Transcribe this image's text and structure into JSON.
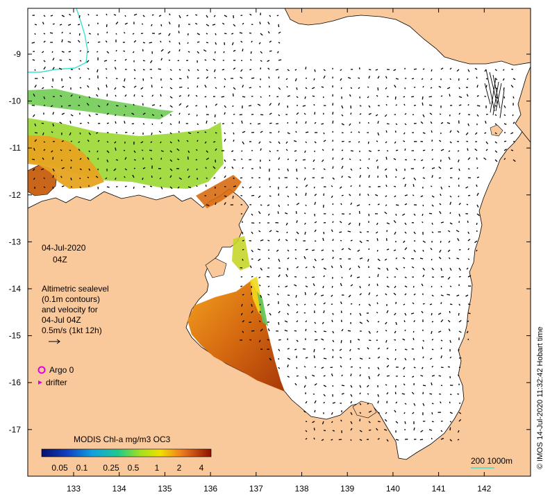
{
  "map": {
    "date": "04-Jul-2020",
    "time": "04Z",
    "legend_lines": [
      "Altimetric sealevel",
      "(0.1m contours)",
      "and velocity for",
      "04-Jul 04Z",
      "0.5m/s (1kt 12h)"
    ],
    "argo_label": "Argo 0",
    "drifter_label": "drifter",
    "colorbar": {
      "title": "MODIS Chl-a mg/m3 OC3",
      "ticks": [
        "0.05",
        "0.1",
        "0.25",
        "0.5",
        "1",
        "2",
        "4"
      ],
      "tick_values": [
        0.05,
        0.1,
        0.25,
        0.5,
        1,
        2,
        4
      ]
    },
    "depth_label": "200  1000m",
    "credit": "© IMOS 14-Jul-2020 11:32:42 Hobart time",
    "x_ticks": [
      "133",
      "134",
      "135",
      "136",
      "137",
      "138",
      "139",
      "140",
      "141",
      "142"
    ],
    "y_ticks": [
      "-9",
      "-10",
      "-11",
      "-12",
      "-13",
      "-14",
      "-15",
      "-16",
      "-17"
    ],
    "colors": {
      "land": "#f9c89b",
      "ocean": "#ffffff",
      "argo": "#e000e0",
      "drifter": "#e000e0",
      "depth_contour": "#40e0d0",
      "chl_high": "#b5400a"
    }
  }
}
